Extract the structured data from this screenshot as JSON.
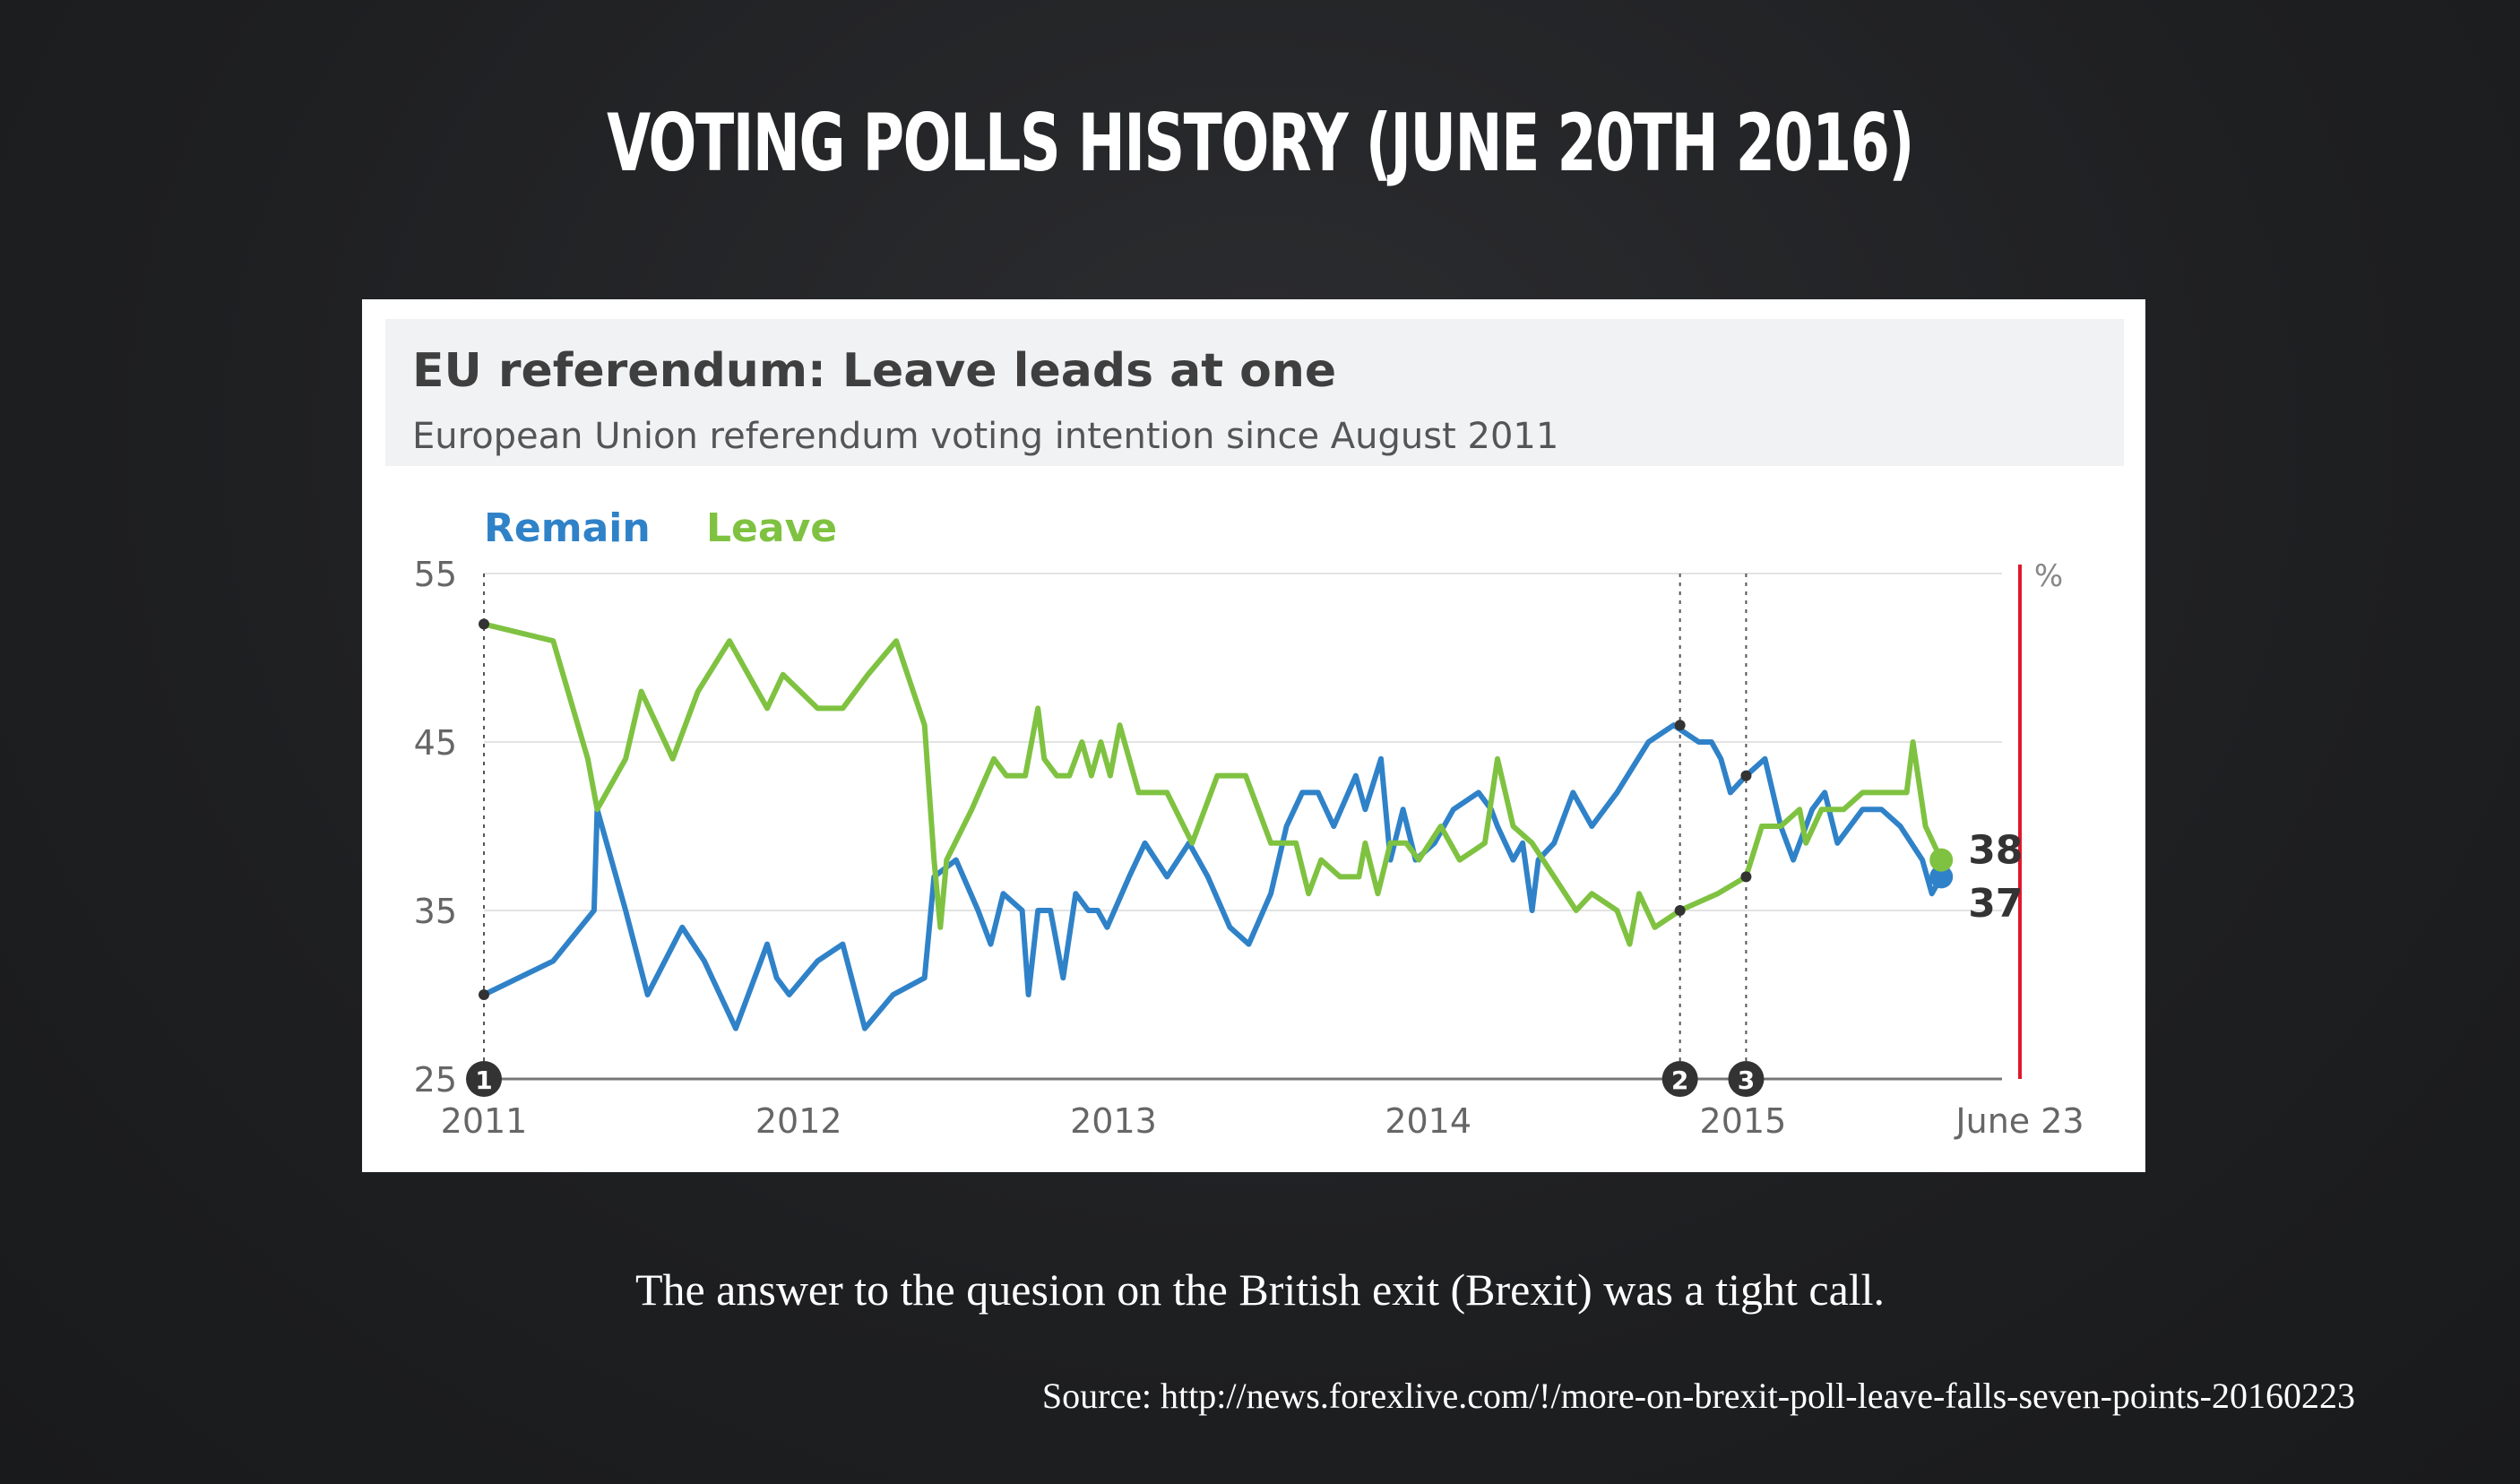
{
  "slide": {
    "title": "VOTING POLLS HISTORY (JUNE 20TH 2016)",
    "caption": "The answer to the quesion on the British exit (Brexit) was a tight call.",
    "source": "Source: http://news.forexlive.com/!/more-on-brexit-poll-leave-falls-seven-points-20160223"
  },
  "chart_data": {
    "type": "line",
    "title": "EU referendum: Leave leads at one",
    "subtitle": "European Union referendum voting intention since August 2011",
    "unit_label": "%",
    "ylim": [
      25,
      55
    ],
    "yticks": [
      55,
      45,
      35,
      25
    ],
    "xlim": [
      2011.0,
      2015.88
    ],
    "xticks": [
      {
        "value": 2011.0,
        "label": "2011"
      },
      {
        "value": 2012.0,
        "label": "2012"
      },
      {
        "value": 2013.0,
        "label": "2013"
      },
      {
        "value": 2014.0,
        "label": "2014"
      },
      {
        "value": 2015.0,
        "label": "2015"
      },
      {
        "value": 2015.88,
        "label": "June 23"
      }
    ],
    "grid": true,
    "legend": "top-left",
    "events": [
      {
        "label": "1",
        "x": 2011.0
      },
      {
        "label": "2",
        "x": 2014.8
      },
      {
        "label": "3",
        "x": 2015.01
      }
    ],
    "end_labels": [
      "38",
      "37"
    ],
    "colors": {
      "remain": "#2f82c8",
      "leave": "#7fc241",
      "referendum_line": "#e0182d",
      "grid": "#e3e3e3",
      "axis": "#777777"
    },
    "series": [
      {
        "name": "Remain",
        "color": "#2f82c8",
        "points": [
          [
            2011.0,
            30
          ],
          [
            2011.22,
            32
          ],
          [
            2011.35,
            35
          ],
          [
            2011.36,
            41
          ],
          [
            2011.45,
            35
          ],
          [
            2011.52,
            30
          ],
          [
            2011.63,
            34
          ],
          [
            2011.7,
            32
          ],
          [
            2011.8,
            28
          ],
          [
            2011.9,
            33
          ],
          [
            2011.93,
            31
          ],
          [
            2011.97,
            30
          ],
          [
            2012.06,
            32
          ],
          [
            2012.14,
            33
          ],
          [
            2012.21,
            28
          ],
          [
            2012.3,
            30
          ],
          [
            2012.4,
            31
          ],
          [
            2012.43,
            37
          ],
          [
            2012.5,
            38
          ],
          [
            2012.57,
            35
          ],
          [
            2012.61,
            33
          ],
          [
            2012.65,
            36
          ],
          [
            2012.71,
            35
          ],
          [
            2012.73,
            30
          ],
          [
            2012.76,
            35
          ],
          [
            2012.8,
            35
          ],
          [
            2012.84,
            31
          ],
          [
            2012.88,
            36
          ],
          [
            2012.92,
            35
          ],
          [
            2012.95,
            35
          ],
          [
            2012.98,
            34
          ],
          [
            2013.05,
            37
          ],
          [
            2013.1,
            39
          ],
          [
            2013.17,
            37
          ],
          [
            2013.24,
            39
          ],
          [
            2013.3,
            37
          ],
          [
            2013.37,
            34
          ],
          [
            2013.43,
            33
          ],
          [
            2013.5,
            36
          ],
          [
            2013.55,
            40
          ],
          [
            2013.6,
            42
          ],
          [
            2013.65,
            42
          ],
          [
            2013.7,
            40
          ],
          [
            2013.77,
            43
          ],
          [
            2013.8,
            41
          ],
          [
            2013.85,
            44
          ],
          [
            2013.88,
            38
          ],
          [
            2013.92,
            41
          ],
          [
            2013.96,
            38
          ],
          [
            2014.02,
            39
          ],
          [
            2014.08,
            41
          ],
          [
            2014.16,
            42
          ],
          [
            2014.2,
            41
          ],
          [
            2014.22,
            40
          ],
          [
            2014.27,
            38
          ],
          [
            2014.3,
            39
          ],
          [
            2014.33,
            35
          ],
          [
            2014.35,
            38
          ],
          [
            2014.4,
            39
          ],
          [
            2014.46,
            42
          ],
          [
            2014.52,
            40
          ],
          [
            2014.6,
            42
          ],
          [
            2014.7,
            45
          ],
          [
            2014.78,
            46
          ],
          [
            2014.86,
            45
          ],
          [
            2014.9,
            45
          ],
          [
            2014.93,
            44
          ],
          [
            2014.96,
            42
          ],
          [
            2015.01,
            43
          ],
          [
            2015.07,
            44
          ],
          [
            2015.12,
            40
          ],
          [
            2015.16,
            38
          ],
          [
            2015.22,
            41
          ],
          [
            2015.26,
            42
          ],
          [
            2015.3,
            39
          ],
          [
            2015.38,
            41
          ],
          [
            2015.44,
            41
          ],
          [
            2015.5,
            40
          ],
          [
            2015.57,
            38
          ],
          [
            2015.6,
            36
          ],
          [
            2015.63,
            37
          ]
        ]
      },
      {
        "name": "Leave",
        "color": "#7fc241",
        "points": [
          [
            2011.0,
            52
          ],
          [
            2011.22,
            51
          ],
          [
            2011.33,
            44
          ],
          [
            2011.36,
            41
          ],
          [
            2011.45,
            44
          ],
          [
            2011.5,
            48
          ],
          [
            2011.6,
            44
          ],
          [
            2011.68,
            48
          ],
          [
            2011.78,
            51
          ],
          [
            2011.9,
            47
          ],
          [
            2011.95,
            49
          ],
          [
            2012.06,
            47
          ],
          [
            2012.14,
            47
          ],
          [
            2012.22,
            49
          ],
          [
            2012.31,
            51
          ],
          [
            2012.4,
            46
          ],
          [
            2012.43,
            38
          ],
          [
            2012.45,
            34
          ],
          [
            2012.47,
            38
          ],
          [
            2012.55,
            41
          ],
          [
            2012.62,
            44
          ],
          [
            2012.66,
            43
          ],
          [
            2012.72,
            43
          ],
          [
            2012.76,
            47
          ],
          [
            2012.78,
            44
          ],
          [
            2012.82,
            43
          ],
          [
            2012.86,
            43
          ],
          [
            2012.9,
            45
          ],
          [
            2012.93,
            43
          ],
          [
            2012.96,
            45
          ],
          [
            2012.99,
            43
          ],
          [
            2013.02,
            46
          ],
          [
            2013.08,
            42
          ],
          [
            2013.17,
            42
          ],
          [
            2013.25,
            39
          ],
          [
            2013.33,
            43
          ],
          [
            2013.42,
            43
          ],
          [
            2013.5,
            39
          ],
          [
            2013.58,
            39
          ],
          [
            2013.62,
            36
          ],
          [
            2013.66,
            38
          ],
          [
            2013.72,
            37
          ],
          [
            2013.78,
            37
          ],
          [
            2013.8,
            39
          ],
          [
            2013.84,
            36
          ],
          [
            2013.88,
            39
          ],
          [
            2013.93,
            39
          ],
          [
            2013.97,
            38
          ],
          [
            2014.04,
            40
          ],
          [
            2014.1,
            38
          ],
          [
            2014.18,
            39
          ],
          [
            2014.22,
            44
          ],
          [
            2014.27,
            40
          ],
          [
            2014.33,
            39
          ],
          [
            2014.4,
            37
          ],
          [
            2014.47,
            35
          ],
          [
            2014.52,
            36
          ],
          [
            2014.6,
            35
          ],
          [
            2014.64,
            33
          ],
          [
            2014.67,
            36
          ],
          [
            2014.72,
            34
          ],
          [
            2014.8,
            35
          ],
          [
            2014.92,
            36
          ],
          [
            2015.01,
            37
          ],
          [
            2015.06,
            40
          ],
          [
            2015.12,
            40
          ],
          [
            2015.18,
            41
          ],
          [
            2015.2,
            39
          ],
          [
            2015.25,
            41
          ],
          [
            2015.32,
            41
          ],
          [
            2015.38,
            42
          ],
          [
            2015.45,
            42
          ],
          [
            2015.52,
            42
          ],
          [
            2015.54,
            45
          ],
          [
            2015.58,
            40
          ],
          [
            2015.63,
            38
          ]
        ]
      }
    ]
  }
}
